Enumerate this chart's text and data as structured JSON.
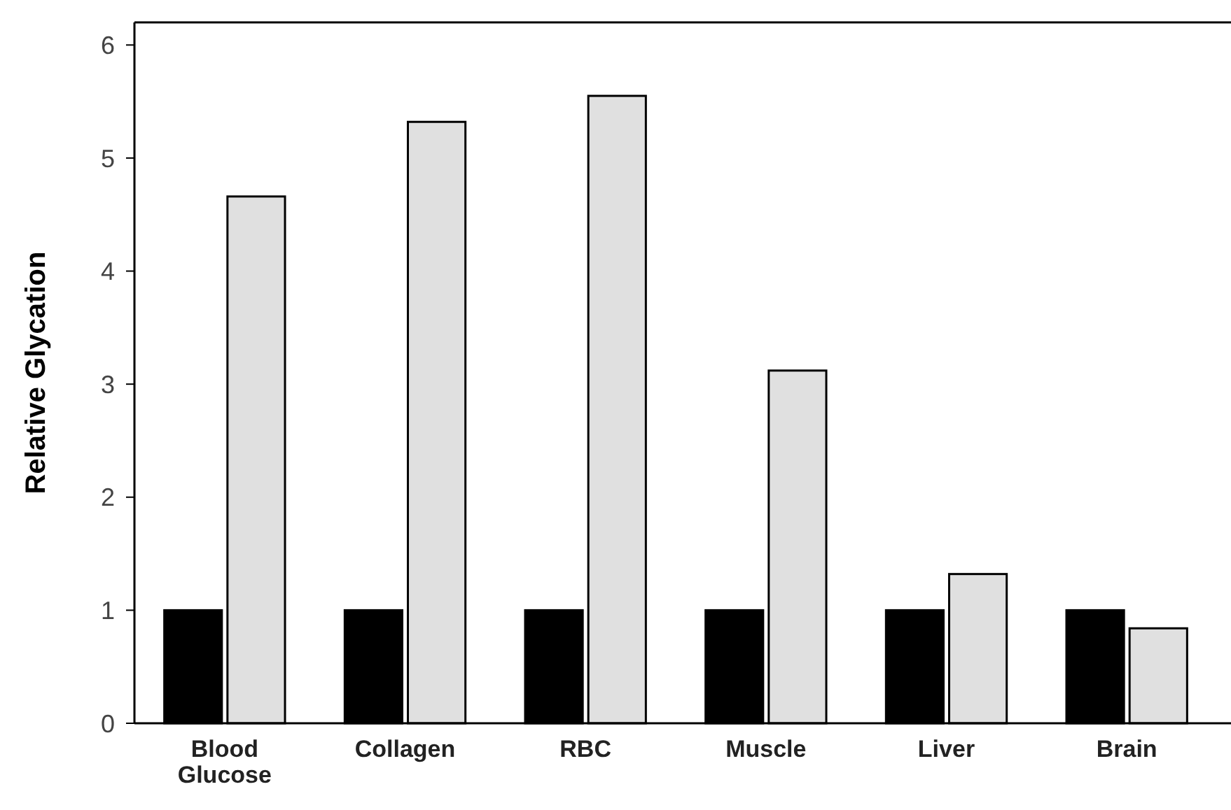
{
  "chart_data": {
    "type": "bar",
    "ylabel": "Relative Glycation",
    "categories": [
      "Blood Glucose",
      "Collagen",
      "RBC",
      "Muscle",
      "Liver",
      "Brain"
    ],
    "series": [
      {
        "color": "#000000",
        "values": [
          1,
          1,
          1,
          1,
          1,
          1
        ]
      },
      {
        "color": "#e0e0e0",
        "values": [
          4.66,
          5.32,
          5.55,
          3.12,
          1.32,
          0.84
        ]
      }
    ],
    "ylim": [
      0,
      6.2
    ],
    "yticks": [
      0,
      1,
      2,
      3,
      4,
      5,
      6
    ],
    "grid": false
  }
}
